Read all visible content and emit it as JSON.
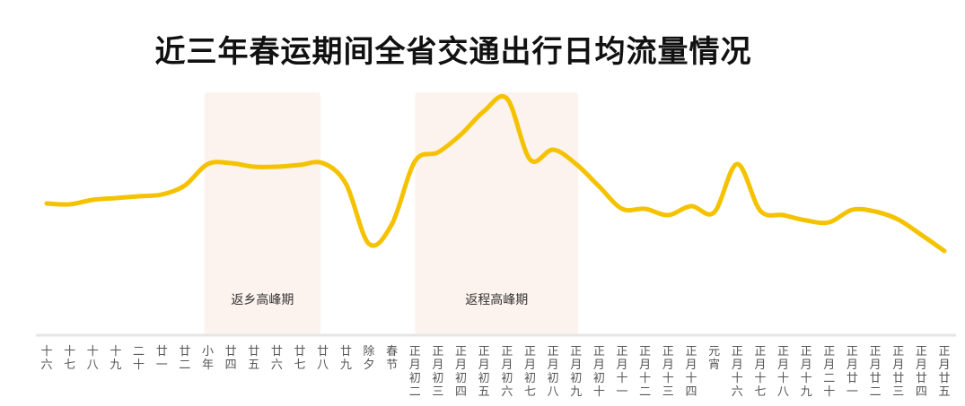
{
  "chart_data": {
    "type": "line",
    "title": "近三年春运期间全省交通出行日均流量情况",
    "xlabel": "",
    "ylabel": "",
    "grid": false,
    "legend": "none",
    "categories": [
      "十六",
      "十七",
      "十八",
      "十九",
      "二十",
      "廿一",
      "廿二",
      "小年",
      "廿四",
      "廿五",
      "廿六",
      "廿七",
      "廿八",
      "廿九",
      "除夕",
      "春节",
      "正月初二",
      "正月初三",
      "正月初四",
      "正月初五",
      "正月初六",
      "正月初七",
      "正月初八",
      "正月初九",
      "正月初十",
      "正月十一",
      "正月十二",
      "正月十三",
      "正月十四",
      "元宵",
      "正月十六",
      "正月十七",
      "正月十八",
      "正月十九",
      "正月二十",
      "正月廿一",
      "正月廿二",
      "正月廿三",
      "正月廿四",
      "正月廿五"
    ],
    "series": [
      {
        "name": "日均流量",
        "color": "#F5C200",
        "values": [
          73,
          72,
          77,
          79,
          81,
          83,
          93,
          117,
          118,
          114,
          114,
          116,
          118,
          95,
          28,
          50,
          120,
          130,
          150,
          176,
          190,
          122,
          133,
          117,
          92,
          67,
          67,
          60,
          70,
          63,
          117,
          65,
          60,
          54,
          52,
          66,
          64,
          55,
          38,
          20
        ]
      }
    ],
    "ylim": [
      0,
      200
    ],
    "annotations": [
      {
        "label": "返乡高峰期",
        "range": [
          6.85,
          11.9
        ],
        "color": "#FDF3EE"
      },
      {
        "label": "返程高峰期",
        "range": [
          16.0,
          23.1
        ],
        "color": "#FDF3EE"
      }
    ]
  }
}
